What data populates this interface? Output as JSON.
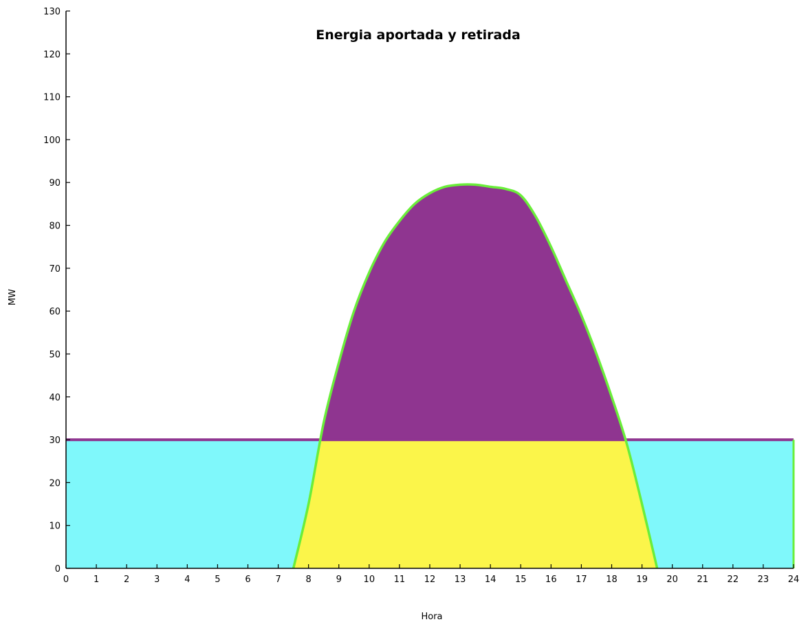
{
  "chart_data": {
    "type": "area",
    "title": "Energia aportada y retirada",
    "xlabel": "Hora",
    "ylabel": "MW",
    "xlim": [
      0,
      24
    ],
    "ylim": [
      0,
      130
    ],
    "x_ticks": [
      0,
      1,
      2,
      3,
      4,
      5,
      6,
      7,
      8,
      9,
      10,
      11,
      12,
      13,
      14,
      15,
      16,
      17,
      18,
      19,
      20,
      21,
      22,
      23,
      24
    ],
    "y_ticks": [
      0,
      10,
      20,
      30,
      40,
      50,
      60,
      70,
      80,
      90,
      100,
      110,
      120,
      130
    ],
    "grid": false,
    "legend": "none",
    "series": [
      {
        "color": "#7ff8fb",
        "x": [
          0,
          24
        ],
        "y": [
          30,
          30
        ]
      },
      {
        "color": "#8f3590",
        "line_color": "#8f3590",
        "x": [
          0,
          24
        ],
        "y": [
          30,
          30
        ]
      },
      {
        "color": "#fbf54a",
        "line_color": "#6aee3a",
        "x": [
          7.5,
          8.0,
          8.5,
          9.0,
          9.5,
          10.0,
          10.5,
          11.0,
          11.5,
          12.0,
          12.5,
          13.0,
          13.5,
          14.0,
          14.5,
          15.0,
          15.5,
          16.0,
          16.5,
          17.0,
          17.5,
          18.0,
          18.5,
          19.0,
          19.5
        ],
        "y": [
          0,
          15,
          34,
          48,
          60,
          69,
          76,
          81,
          85,
          87.5,
          89,
          89.5,
          89.5,
          89,
          88.5,
          87,
          82,
          75,
          67,
          59,
          50,
          40,
          29,
          15,
          0
        ]
      }
    ],
    "end_marker": {
      "color": "#6aee3a",
      "x": 24,
      "y": [
        0,
        30
      ]
    }
  }
}
